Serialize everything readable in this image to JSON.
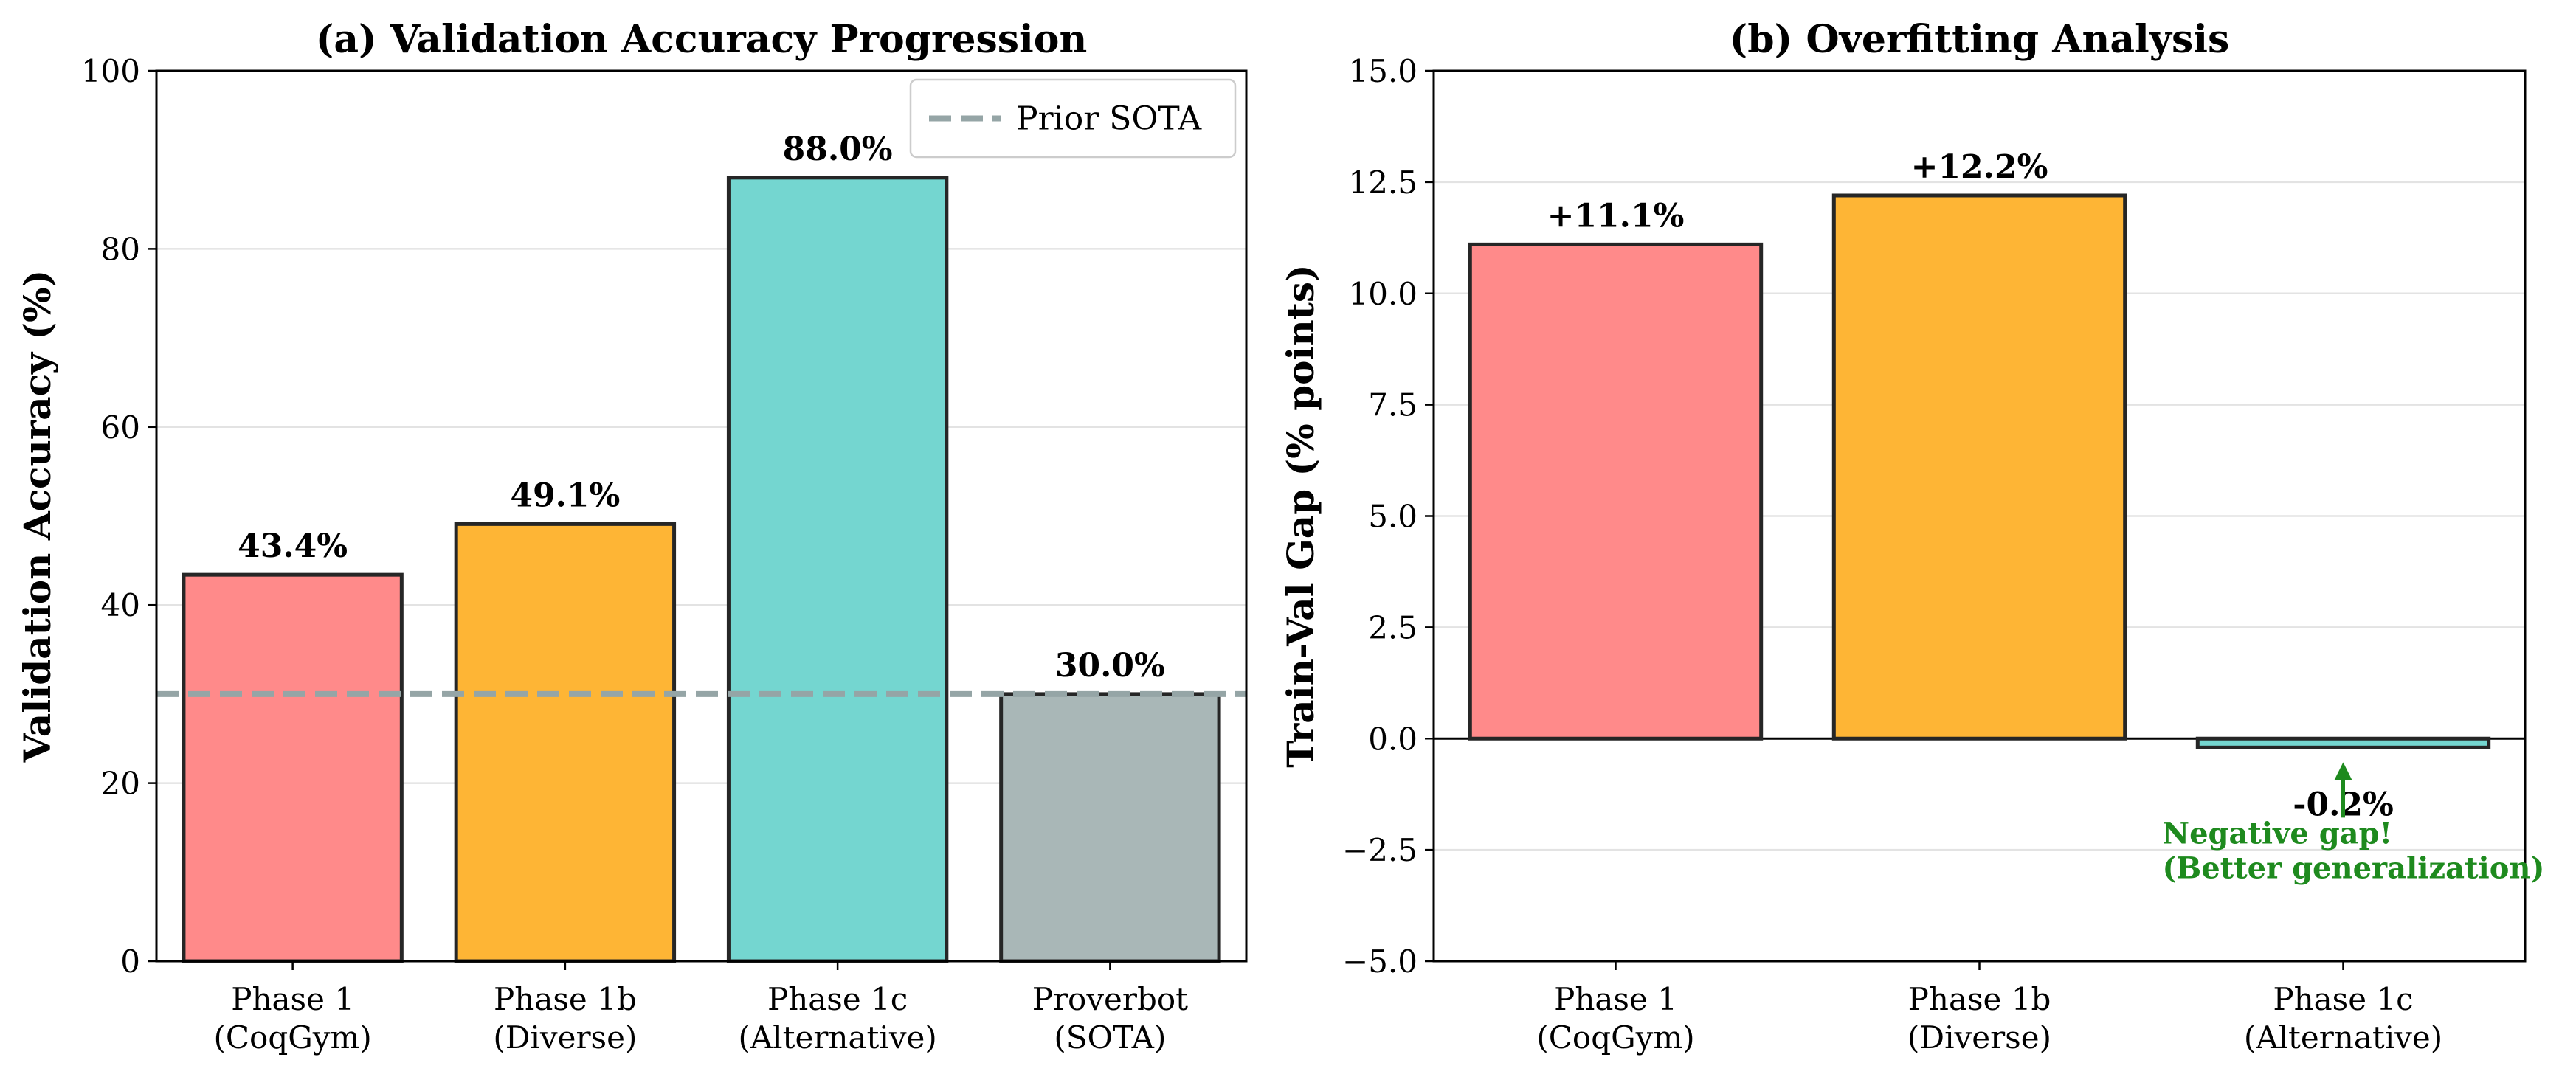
{
  "chart_data": [
    {
      "type": "bar",
      "title": "(a) Validation Accuracy Progression",
      "xlabel": "",
      "ylabel": "Validation Accuracy (%)",
      "ylim": [
        0,
        100
      ],
      "yticks": [
        0,
        20,
        40,
        60,
        80,
        100
      ],
      "ytick_labels": [
        "0",
        "20",
        "40",
        "60",
        "80",
        "100"
      ],
      "grid": "y",
      "categories": [
        [
          "Phase 1",
          "(CoqGym)"
        ],
        [
          "Phase 1b",
          "(Diverse)"
        ],
        [
          "Phase 1c",
          "(Alternative)"
        ],
        [
          "Proverbot",
          "(SOTA)"
        ]
      ],
      "values": [
        43.4,
        49.1,
        88.0,
        30.0
      ],
      "value_labels": [
        "43.4%",
        "49.1%",
        "88.0%",
        "30.0%"
      ],
      "colors": [
        "#ff8a8a",
        "#feb535",
        "#74d6d0",
        "#a9b7b7"
      ],
      "reference_line": {
        "label": "Prior SOTA",
        "value": 30,
        "style": "dashed",
        "color": "#95a5a6"
      },
      "legend": {
        "position": "top-right",
        "entries": [
          "Prior SOTA"
        ]
      }
    },
    {
      "type": "bar",
      "title": "(b) Overfitting Analysis",
      "xlabel": "",
      "ylabel": "Train-Val Gap (% points)",
      "ylim": [
        -5,
        15
      ],
      "yticks": [
        -5,
        -2.5,
        0,
        2.5,
        5,
        7.5,
        10,
        12.5,
        15
      ],
      "ytick_labels": [
        "−5.0",
        "−2.5",
        "0.0",
        "2.5",
        "5.0",
        "7.5",
        "10.0",
        "12.5",
        "15.0"
      ],
      "grid": "y",
      "categories": [
        [
          "Phase 1",
          "(CoqGym)"
        ],
        [
          "Phase 1b",
          "(Diverse)"
        ],
        [
          "Phase 1c",
          "(Alternative)"
        ]
      ],
      "values": [
        11.1,
        12.2,
        -0.2
      ],
      "value_labels": [
        "+11.1%",
        "+12.2%",
        "-0.2%"
      ],
      "colors": [
        "#ff8a8a",
        "#feb535",
        "#74d6d0"
      ],
      "annotation": {
        "text": [
          "Negative gap!",
          "(Better generalization)"
        ],
        "points_to": {
          "category": "Phase 1c",
          "value": -0.2
        },
        "color": "#1e8a1e"
      }
    }
  ]
}
